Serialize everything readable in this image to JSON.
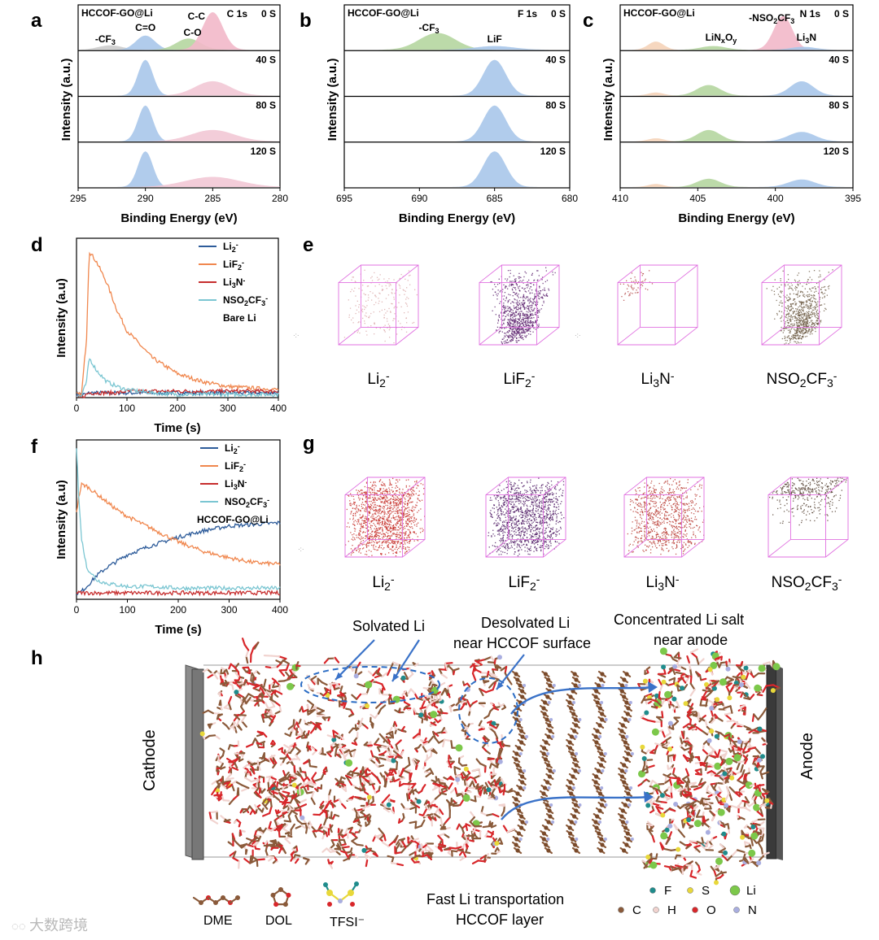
{
  "figure": {
    "panel_letters": [
      "a",
      "b",
      "c",
      "d",
      "e",
      "f",
      "g",
      "h"
    ],
    "xps_xlabel": "Binding Energy (eV)",
    "xps_ylabel": "Intensity (a.u.)",
    "tof_xlabel": "Time (s)",
    "tof_ylabel": "Intensity (a.u)"
  },
  "chart_data": [
    {
      "panel": "a",
      "type": "area",
      "title": "C 1s",
      "sample": "HCCOF-GO@Li",
      "xlabel": "Binding Energy (eV)",
      "ylabel": "Intensity (a.u.)",
      "xlim": [
        295,
        280
      ],
      "xticks": [
        "295",
        "290",
        "285",
        "280"
      ],
      "stack_labels": [
        "0 S",
        "40 S",
        "80 S",
        "120 S"
      ],
      "peak_labels": [
        {
          "text": "-CF3",
          "x": 292.5
        },
        {
          "text": "C=O",
          "x": 290.0
        },
        {
          "text": "C-O",
          "x": 286.5
        },
        {
          "text": "C-C",
          "x": 285.0
        }
      ],
      "stacks": [
        {
          "label": "0 S",
          "peaks": [
            {
              "center": 292.6,
              "width": 0.9,
              "height": 0.12,
              "color": "#cccccc"
            },
            {
              "center": 290.0,
              "width": 0.7,
              "height": 0.38,
              "color": "#a9c7ea"
            },
            {
              "center": 286.8,
              "width": 0.9,
              "height": 0.3,
              "color": "#b5d6a0"
            },
            {
              "center": 285.0,
              "width": 0.75,
              "height": 1.0,
              "color": "#f2b8c9"
            }
          ]
        },
        {
          "label": "40 S",
          "peaks": [
            {
              "center": 290.0,
              "width": 0.55,
              "height": 0.95,
              "color": "#a9c7ea"
            },
            {
              "center": 285.0,
              "width": 1.3,
              "height": 0.38,
              "color": "#f2c8d5"
            }
          ]
        },
        {
          "label": "80 S",
          "peaks": [
            {
              "center": 290.0,
              "width": 0.55,
              "height": 0.95,
              "color": "#a9c7ea"
            },
            {
              "center": 285.0,
              "width": 1.6,
              "height": 0.3,
              "color": "#f2c8d5"
            }
          ]
        },
        {
          "label": "120 S",
          "peaks": [
            {
              "center": 290.0,
              "width": 0.55,
              "height": 0.95,
              "color": "#a9c7ea"
            },
            {
              "center": 285.0,
              "width": 2.0,
              "height": 0.27,
              "color": "#f2c8d5"
            }
          ]
        }
      ]
    },
    {
      "panel": "b",
      "type": "area",
      "title": "F 1s",
      "sample": "HCCOF-GO@Li",
      "xlabel": "Binding Energy (eV)",
      "ylabel": "Intensity (a.u.)",
      "xlim": [
        695,
        680
      ],
      "xticks": [
        "695",
        "690",
        "685",
        "680"
      ],
      "stack_labels": [
        "0 S",
        "40 S",
        "80 S",
        "120 S"
      ],
      "peak_labels": [
        {
          "text": "-CF3",
          "x": 688.5
        },
        {
          "text": "LiF",
          "x": 685.0
        }
      ],
      "stacks": [
        {
          "label": "0 S",
          "peaks": [
            {
              "center": 688.8,
              "width": 1.2,
              "height": 0.45,
              "color": "#b5d6a0"
            },
            {
              "center": 685.0,
              "width": 1.3,
              "height": 0.1,
              "color": "#a9c7ea"
            }
          ]
        },
        {
          "label": "40 S",
          "peaks": [
            {
              "center": 685.0,
              "width": 0.75,
              "height": 0.95,
              "color": "#a9c7ea"
            }
          ]
        },
        {
          "label": "80 S",
          "peaks": [
            {
              "center": 685.0,
              "width": 0.75,
              "height": 0.95,
              "color": "#a9c7ea"
            }
          ]
        },
        {
          "label": "120 S",
          "peaks": [
            {
              "center": 685.0,
              "width": 0.75,
              "height": 0.95,
              "color": "#a9c7ea"
            }
          ]
        }
      ]
    },
    {
      "panel": "c",
      "type": "area",
      "title": "N 1s",
      "sample": "HCCOF-GO@Li",
      "xlabel": "Binding Energy (eV)",
      "ylabel": "Intensity (a.u.)",
      "xlim": [
        410,
        395
      ],
      "xticks": [
        "410",
        "405",
        "400",
        "395"
      ],
      "stack_labels": [
        "0 S",
        "40 S",
        "80 S",
        "120 S"
      ],
      "peak_labels": [
        {
          "text": "LiNxOy",
          "x": 403.5
        },
        {
          "text": "-NSO2CF3",
          "x": 399.5
        },
        {
          "text": "Li3N",
          "x": 398.0
        }
      ],
      "stacks": [
        {
          "label": "0 S",
          "peaks": [
            {
              "center": 407.7,
              "width": 0.5,
              "height": 0.22,
              "color": "#f5d3b8"
            },
            {
              "center": 404.0,
              "width": 0.8,
              "height": 0.1,
              "color": "#b5d6a0"
            },
            {
              "center": 399.5,
              "width": 0.6,
              "height": 0.9,
              "color": "#f2b8c9"
            },
            {
              "center": 398.2,
              "width": 0.8,
              "height": 0.08,
              "color": "#a9c7ea"
            }
          ]
        },
        {
          "label": "40 S",
          "peaks": [
            {
              "center": 407.7,
              "width": 0.5,
              "height": 0.08,
              "color": "#f5d3b8"
            },
            {
              "center": 404.3,
              "width": 0.75,
              "height": 0.28,
              "color": "#b5d6a0"
            },
            {
              "center": 398.3,
              "width": 0.75,
              "height": 0.38,
              "color": "#a9c7ea"
            }
          ]
        },
        {
          "label": "80 S",
          "peaks": [
            {
              "center": 407.7,
              "width": 0.5,
              "height": 0.08,
              "color": "#f5d3b8"
            },
            {
              "center": 404.3,
              "width": 0.75,
              "height": 0.3,
              "color": "#b5d6a0"
            },
            {
              "center": 398.3,
              "width": 0.85,
              "height": 0.25,
              "color": "#a9c7ea"
            }
          ]
        },
        {
          "label": "120 S",
          "peaks": [
            {
              "center": 407.7,
              "width": 0.5,
              "height": 0.08,
              "color": "#f5d3b8"
            },
            {
              "center": 404.3,
              "width": 0.75,
              "height": 0.22,
              "color": "#b5d6a0"
            },
            {
              "center": 398.3,
              "width": 0.85,
              "height": 0.2,
              "color": "#a9c7ea"
            }
          ]
        }
      ]
    },
    {
      "panel": "d",
      "type": "line",
      "xlabel": "Time (s)",
      "ylabel": "Intensity (a.u)",
      "xlim": [
        0,
        400
      ],
      "ylim": [
        0,
        1.0
      ],
      "xticks": [
        "0",
        "100",
        "200",
        "300",
        "400"
      ],
      "legend_title": "Bare Li",
      "legend_position": "top-right",
      "x": [
        0,
        10,
        20,
        25,
        40,
        60,
        80,
        100,
        150,
        200,
        250,
        300,
        350,
        400
      ],
      "series": [
        {
          "name": "Li2-",
          "color": "#2e5c9a",
          "values": [
            0.02,
            0.02,
            0.02,
            0.03,
            0.03,
            0.03,
            0.03,
            0.03,
            0.03,
            0.03,
            0.03,
            0.03,
            0.03,
            0.03
          ]
        },
        {
          "name": "LiF2-",
          "color": "#f0874e",
          "values": [
            0.02,
            0.02,
            0.38,
            0.92,
            0.85,
            0.72,
            0.55,
            0.42,
            0.25,
            0.15,
            0.1,
            0.07,
            0.06,
            0.05
          ]
        },
        {
          "name": "Li3N-",
          "color": "#c62d2d",
          "values": [
            0.0,
            0.0,
            0.02,
            0.03,
            0.03,
            0.03,
            0.03,
            0.04,
            0.04,
            0.04,
            0.04,
            0.04,
            0.04,
            0.04
          ]
        },
        {
          "name": "NSO2CF3-",
          "color": "#7bc6d2",
          "values": [
            0.01,
            0.01,
            0.1,
            0.25,
            0.17,
            0.1,
            0.07,
            0.05,
            0.03,
            0.02,
            0.02,
            0.02,
            0.02,
            0.02
          ]
        }
      ]
    },
    {
      "panel": "f",
      "type": "line",
      "xlabel": "Time (s)",
      "ylabel": "Intensity (a.u)",
      "xlim": [
        0,
        400
      ],
      "ylim": [
        0,
        1.0
      ],
      "xticks": [
        "0",
        "100",
        "200",
        "300",
        "400"
      ],
      "legend_title": "HCCOF-GO@Li",
      "legend_position": "top-right",
      "x": [
        0,
        5,
        10,
        20,
        40,
        60,
        80,
        100,
        150,
        200,
        250,
        300,
        350,
        400
      ],
      "series": [
        {
          "name": "Li2-",
          "color": "#2e5c9a",
          "values": [
            0.04,
            0.04,
            0.05,
            0.08,
            0.15,
            0.2,
            0.24,
            0.28,
            0.34,
            0.39,
            0.43,
            0.46,
            0.47,
            0.48
          ]
        },
        {
          "name": "LiF2-",
          "color": "#f0874e",
          "values": [
            0.55,
            0.65,
            0.72,
            0.71,
            0.66,
            0.61,
            0.56,
            0.52,
            0.44,
            0.36,
            0.3,
            0.26,
            0.23,
            0.22
          ]
        },
        {
          "name": "Li3N-",
          "color": "#c62d2d",
          "values": [
            0.04,
            0.04,
            0.04,
            0.04,
            0.04,
            0.04,
            0.04,
            0.04,
            0.04,
            0.04,
            0.04,
            0.04,
            0.04,
            0.04
          ]
        },
        {
          "name": "NSO2CF3-",
          "color": "#7bc6d2",
          "values": [
            0.95,
            0.6,
            0.38,
            0.2,
            0.12,
            0.1,
            0.09,
            0.08,
            0.08,
            0.07,
            0.07,
            0.07,
            0.07,
            0.07
          ]
        }
      ]
    }
  ],
  "cubes_e": [
    {
      "label": "Li2-",
      "density": 0.15,
      "color": "#d9a8a8",
      "spread": "uniform"
    },
    {
      "label": "LiF2-",
      "density": 0.6,
      "color": "#5a1e6b",
      "spread": "cone"
    },
    {
      "label": "Li3N-",
      "density": 0.04,
      "color": "#b04040",
      "spread": "corner"
    },
    {
      "label": "NSO2CF3-",
      "density": 0.55,
      "color": "#6b5a42",
      "spread": "cone"
    }
  ],
  "cubes_g": [
    {
      "label": "Li2-",
      "density": 0.95,
      "color": "#c42a24",
      "spread": "uniform"
    },
    {
      "label": "LiF2-",
      "density": 0.85,
      "color": "#4a1460",
      "spread": "uniform"
    },
    {
      "label": "Li3N-",
      "density": 0.6,
      "color": "#b6342c",
      "spread": "uniform"
    },
    {
      "label": "NSO2CF3-",
      "density": 0.25,
      "color": "#4f3a2a",
      "spread": "top"
    }
  ],
  "panel_h": {
    "electrode_left": "Cathode",
    "electrode_right": "Anode",
    "callouts": [
      "Solvated Li",
      "Desolvated Li",
      "near HCCOF surface",
      "Concentrated Li salt",
      "near anode"
    ],
    "caption_line1": "Fast Li transportation",
    "caption_line2": "HCCOF layer",
    "molecules": [
      "DME",
      "DOL",
      "TFSI⁻"
    ],
    "atoms_legend": [
      {
        "symbol": "F",
        "color": "#1f8c8c"
      },
      {
        "symbol": "S",
        "color": "#e8d83a"
      },
      {
        "symbol": "Li",
        "color": "#7cc84a"
      },
      {
        "symbol": "C",
        "color": "#8a5a3a"
      },
      {
        "symbol": "H",
        "color": "#f1d3cf"
      },
      {
        "symbol": "O",
        "color": "#d8262a"
      },
      {
        "symbol": "N",
        "color": "#a9aee0"
      }
    ]
  },
  "watermark": "大数跨境"
}
